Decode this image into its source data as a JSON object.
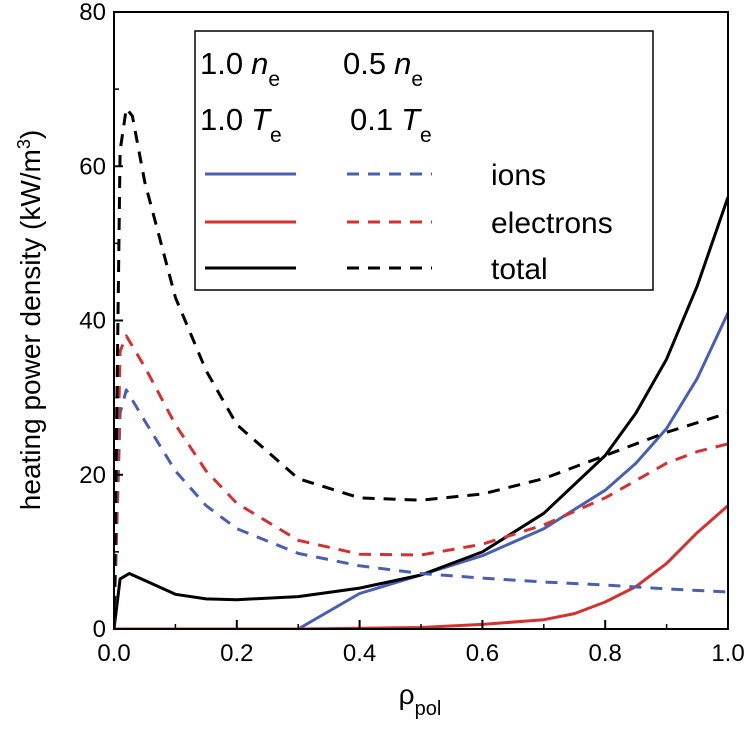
{
  "chart_data": {
    "type": "line",
    "title": "",
    "xlabel": "ρ",
    "xlabel_sub": "pol",
    "ylabel": "heating power density (kW/m",
    "ylabel_sup": "3",
    "ylabel_close": ")",
    "xlim": [
      0.0,
      1.0
    ],
    "ylim": [
      0,
      80
    ],
    "x_ticks": [
      "0.0",
      "0.2",
      "0.4",
      "0.6",
      "0.8",
      "1.0"
    ],
    "y_ticks": [
      "0",
      "20",
      "40",
      "60",
      "80"
    ],
    "grid": false,
    "legend_position": "top-right",
    "legend": {
      "col1_line1": {
        "num": "1.0",
        "sym": "n",
        "sub": "e"
      },
      "col2_line1": {
        "num": "0.5",
        "sym": "n",
        "sub": "e"
      },
      "col1_line2": {
        "num": "1.0",
        "sym": "T",
        "sub": "e"
      },
      "col2_line2": {
        "num": "0.1",
        "sym": "T",
        "sub": "e"
      },
      "entries": [
        "ions",
        "electrons",
        "total"
      ]
    },
    "colors": {
      "ions": "#4a5fb0",
      "electrons": "#d23232",
      "total": "#000000"
    },
    "series": [
      {
        "name": "ions",
        "condition": "1.0 n_e, 1.0 T_e",
        "style": "solid",
        "color": "#4a5fb0",
        "x": [
          0.0,
          0.01,
          0.1,
          0.2,
          0.3,
          0.4,
          0.5,
          0.6,
          0.7,
          0.8,
          0.85,
          0.9,
          0.95,
          1.0
        ],
        "y": [
          0.0,
          0.0,
          0.0,
          0.0,
          0.0,
          4.6,
          7.0,
          9.5,
          13.0,
          18.0,
          21.5,
          26.0,
          32.5,
          41.0
        ]
      },
      {
        "name": "electrons",
        "condition": "1.0 n_e, 1.0 T_e",
        "style": "solid",
        "color": "#d23232",
        "x": [
          0.0,
          0.3,
          0.5,
          0.6,
          0.7,
          0.75,
          0.8,
          0.85,
          0.9,
          0.95,
          1.0
        ],
        "y": [
          0.0,
          0.0,
          0.2,
          0.6,
          1.2,
          2.0,
          3.5,
          5.5,
          8.5,
          12.5,
          16.0
        ]
      },
      {
        "name": "total",
        "condition": "1.0 n_e, 1.0 T_e",
        "style": "solid",
        "color": "#000000",
        "x": [
          0.0,
          0.01,
          0.025,
          0.05,
          0.1,
          0.15,
          0.2,
          0.3,
          0.4,
          0.5,
          0.6,
          0.7,
          0.8,
          0.85,
          0.9,
          0.95,
          1.0
        ],
        "y": [
          0.0,
          6.5,
          7.2,
          6.3,
          4.5,
          3.9,
          3.8,
          4.2,
          5.3,
          7.0,
          10.0,
          15.0,
          22.5,
          28.0,
          35.0,
          44.5,
          56.0
        ]
      },
      {
        "name": "ions",
        "condition": "0.5 n_e, 0.1 T_e",
        "style": "dashed",
        "color": "#4a5fb0",
        "x": [
          0.0,
          0.01,
          0.02,
          0.05,
          0.1,
          0.15,
          0.2,
          0.3,
          0.4,
          0.5,
          0.6,
          0.7,
          0.8,
          0.9,
          1.0
        ],
        "y": [
          0.0,
          28.0,
          31.0,
          27.0,
          20.5,
          16.0,
          13.0,
          9.8,
          8.2,
          7.2,
          6.6,
          6.1,
          5.7,
          5.2,
          4.8
        ]
      },
      {
        "name": "electrons",
        "condition": "0.5 n_e, 0.1 T_e",
        "style": "dashed",
        "color": "#d23232",
        "x": [
          0.0,
          0.01,
          0.02,
          0.05,
          0.1,
          0.15,
          0.2,
          0.3,
          0.4,
          0.5,
          0.6,
          0.7,
          0.8,
          0.9,
          0.95,
          1.0
        ],
        "y": [
          0.0,
          36.0,
          38.0,
          34.0,
          26.5,
          20.5,
          16.3,
          11.5,
          9.7,
          9.6,
          11.0,
          13.5,
          17.0,
          21.5,
          23.0,
          24.0
        ]
      },
      {
        "name": "total",
        "condition": "0.5 n_e, 0.1 T_e",
        "style": "dashed",
        "color": "#000000",
        "x": [
          0.0,
          0.01,
          0.02,
          0.03,
          0.05,
          0.1,
          0.15,
          0.2,
          0.3,
          0.4,
          0.5,
          0.6,
          0.7,
          0.8,
          0.9,
          1.0
        ],
        "y": [
          0.0,
          62.0,
          67.5,
          66.5,
          58.0,
          43.0,
          33.5,
          26.5,
          19.5,
          17.0,
          16.7,
          17.5,
          19.5,
          22.5,
          25.5,
          28.0
        ]
      }
    ]
  }
}
